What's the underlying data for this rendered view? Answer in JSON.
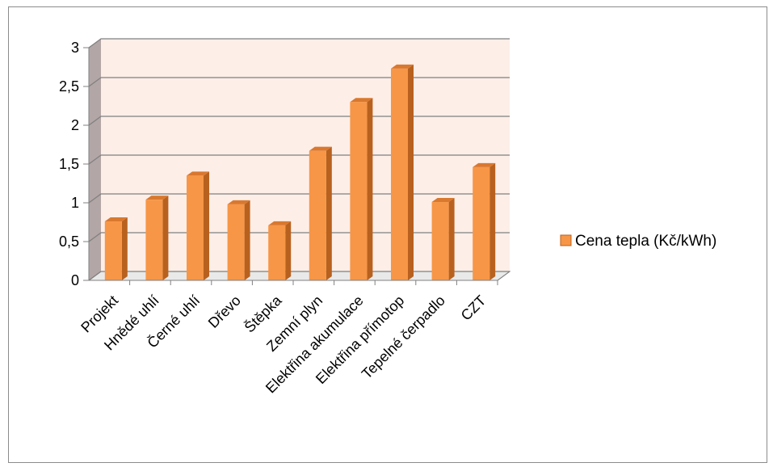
{
  "chart_data": {
    "type": "bar",
    "categories": [
      "Projekt",
      "Hnědé uhlí",
      "Černé uhlí",
      "Dřevo",
      "Štěpka",
      "Zemní plyn",
      "Elektřina akumulace",
      "Elektřina přímotop",
      "Tepelné čerpadlo",
      "CZT"
    ],
    "series": [
      {
        "name": "Cena tepla (Kč/kWh)",
        "values": [
          0.76,
          1.04,
          1.35,
          0.98,
          0.71,
          1.67,
          2.3,
          2.73,
          1.01,
          1.46
        ]
      }
    ],
    "yticks": [
      "0",
      "0,5",
      "1",
      "1,5",
      "2",
      "2,5",
      "3"
    ],
    "ylim": [
      0,
      3
    ],
    "grid": true,
    "legend_position": "right",
    "colors": {
      "bar_front": "#F79646",
      "bar_side": "#B8611F",
      "bar_top": "#D9782F",
      "plot_back": "#FDEEE8",
      "plot_side": "#B3A6A6",
      "floor": "#E9E9E9"
    }
  }
}
